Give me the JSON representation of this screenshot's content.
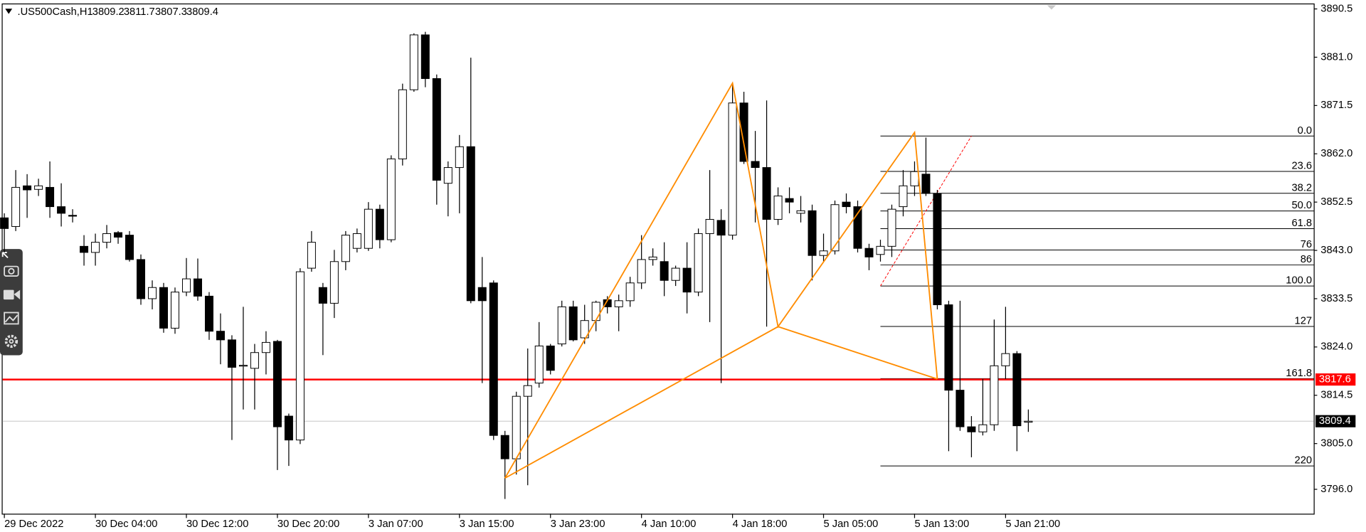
{
  "chart_data": {
    "type": "candlestick",
    "title": ".US500Cash,H1",
    "categories": [
      "29 Dec 2022",
      null,
      null,
      null,
      null,
      null,
      null,
      null,
      "30 Dec 04:00",
      null,
      null,
      null,
      null,
      null,
      null,
      null,
      "30 Dec 12:00",
      null,
      null,
      null,
      null,
      null,
      null,
      null,
      "30 Dec 20:00",
      null,
      null,
      null,
      null,
      null,
      null,
      null,
      "3 Jan 07:00",
      null,
      null,
      null,
      null,
      null,
      null,
      null,
      "3 Jan 15:00",
      null,
      null,
      null,
      null,
      null,
      null,
      null,
      "3 Jan 23:00",
      null,
      null,
      null,
      null,
      null,
      null,
      null,
      "4 Jan 10:00",
      null,
      null,
      null,
      null,
      null,
      null,
      null,
      "4 Jan 18:00",
      null,
      null,
      null,
      null,
      null,
      null,
      null,
      "5 Jan 05:00",
      null,
      null,
      null,
      null,
      null,
      null,
      null,
      "5 Jan 13:00",
      null,
      null,
      null,
      null,
      null,
      null,
      null,
      "5 Jan 21:00",
      null,
      null
    ],
    "open": [
      3849.4,
      3847.7,
      3855.7,
      3855.0,
      3855.4,
      3851.6,
      3849.9,
      3843.8,
      3842.6,
      3844.6,
      3846.5,
      3846.0,
      3841.2,
      3833.5,
      3835.7,
      3827.7,
      3834.8,
      3837.4,
      3834.0,
      3827.1,
      3825.4,
      3820.3,
      3819.8,
      3822.9,
      3825.1,
      3810.4,
      3805.7,
      3839.5,
      3835.7,
      3832.6,
      3840.8,
      3843.4,
      3843.4,
      3851.1,
      3845.1,
      3861.0,
      3874.6,
      3885.4,
      3876.8,
      3856.2,
      3859.3,
      3863.4,
      3835.7,
      3836.6,
      3806.6,
      3802.0,
      3814.3,
      3816.9,
      3824.2,
      3824.6,
      3831.9,
      3825.8,
      3829.2,
      3833.3,
      3831.9,
      3833.1,
      3836.6,
      3841.2,
      3840.8,
      3837.1,
      3839.5,
      3834.8,
      3846.3,
      3848.9,
      3846.0,
      3872.0,
      3860.5,
      3859.3,
      3849.1,
      3853.2,
      3850.3,
      3850.8,
      3842.0,
      3842.9,
      3852.5,
      3851.6,
      3843.4,
      3842.2,
      3843.8,
      3851.6,
      3855.7,
      3858.0,
      3854.2,
      3832.3,
      3815.5,
      3808.3,
      3807.3,
      3808.7,
      3820.3,
      3822.7,
      3809.2
    ],
    "high": [
      3850.3,
      3858.8,
      3858.0,
      3857.1,
      3860.5,
      3856.2,
      3851.1,
      3846.0,
      3846.3,
      3848.0,
      3846.8,
      3846.8,
      3842.2,
      3837.1,
      3836.6,
      3835.7,
      3841.5,
      3841.4,
      3834.8,
      3830.6,
      3826.3,
      3831.9,
      3824.6,
      3827.1,
      3825.4,
      3810.9,
      3839.5,
      3846.8,
      3836.6,
      3843.1,
      3846.8,
      3847.3,
      3852.5,
      3852.0,
      3861.7,
      3875.8,
      3885.7,
      3886.0,
      3877.6,
      3860.5,
      3865.7,
      3880.9,
      3841.7,
      3837.1,
      3807.5,
      3815.2,
      3823.7,
      3828.9,
      3824.6,
      3833.1,
      3833.1,
      3832.3,
      3833.1,
      3834.0,
      3834.3,
      3837.8,
      3846.0,
      3843.4,
      3844.6,
      3840.0,
      3844.6,
      3847.3,
      3858.8,
      3851.1,
      3875.9,
      3874.2,
      3866.5,
      3872.5,
      3855.4,
      3855.4,
      3853.7,
      3852.0,
      3846.3,
      3852.8,
      3854.2,
      3852.8,
      3844.3,
      3845.1,
      3852.0,
      3858.8,
      3860.5,
      3865.2,
      3854.9,
      3833.1,
      3833.1,
      3810.4,
      3817.7,
      3829.4,
      3831.9,
      3823.2,
      3811.7
    ],
    "low": [
      3842.6,
      3846.8,
      3849.4,
      3853.7,
      3849.4,
      3847.7,
      3848.5,
      3840.0,
      3840.0,
      3843.4,
      3844.3,
      3840.8,
      3832.3,
      3831.4,
      3826.8,
      3826.6,
      3834.0,
      3833.1,
      3825.4,
      3820.6,
      3805.7,
      3811.7,
      3811.7,
      3818.6,
      3799.8,
      3800.6,
      3804.9,
      3838.8,
      3822.4,
      3829.7,
      3839.1,
      3842.6,
      3842.9,
      3843.4,
      3844.6,
      3859.7,
      3874.2,
      3875.1,
      3852.0,
      3849.7,
      3850.3,
      3832.6,
      3816.9,
      3805.7,
      3794.1,
      3798.9,
      3796.8,
      3816.0,
      3818.6,
      3824.1,
      3825.1,
      3824.6,
      3827.1,
      3830.6,
      3827.1,
      3831.9,
      3835.4,
      3840.0,
      3834.0,
      3836.0,
      3830.6,
      3834.0,
      3828.9,
      3816.9,
      3845.1,
      3860.0,
      3848.5,
      3828.0,
      3848.0,
      3850.3,
      3848.5,
      3837.1,
      3840.8,
      3842.2,
      3850.3,
      3842.6,
      3839.1,
      3840.8,
      3841.7,
      3849.7,
      3853.7,
      3853.7,
      3831.4,
      3803.5,
      3807.5,
      3802.3,
      3806.6,
      3807.5,
      3817.7,
      3803.5,
      3807.3
    ],
    "close": [
      3847.3,
      3855.4,
      3854.9,
      3855.7,
      3851.6,
      3850.3,
      3849.8,
      3842.6,
      3844.6,
      3846.3,
      3845.6,
      3841.2,
      3833.5,
      3835.7,
      3827.7,
      3834.8,
      3837.4,
      3834.0,
      3827.1,
      3825.4,
      3820.0,
      3820.4,
      3822.9,
      3824.9,
      3808.3,
      3805.7,
      3838.8,
      3844.6,
      3832.6,
      3840.8,
      3846.0,
      3846.3,
      3851.1,
      3845.1,
      3861.0,
      3874.6,
      3885.4,
      3876.8,
      3856.8,
      3859.3,
      3863.4,
      3833.1,
      3833.1,
      3806.6,
      3802.0,
      3814.3,
      3816.4,
      3824.2,
      3819.4,
      3831.9,
      3825.4,
      3829.2,
      3832.8,
      3831.9,
      3833.1,
      3836.6,
      3841.2,
      3841.7,
      3837.1,
      3839.5,
      3834.8,
      3846.3,
      3849.1,
      3846.0,
      3872.0,
      3860.5,
      3859.3,
      3849.1,
      3853.7,
      3852.5,
      3850.8,
      3842.0,
      3842.9,
      3852.0,
      3851.6,
      3843.4,
      3841.7,
      3843.8,
      3851.1,
      3855.7,
      3858.5,
      3854.2,
      3832.3,
      3815.5,
      3808.3,
      3807.3,
      3808.7,
      3820.3,
      3822.7,
      3808.5,
      3809.4
    ],
    "up_color": "#ffffff",
    "down_color": "#000000",
    "wick_color": "#000000",
    "ylim": [
      3791.2,
      3891.4
    ],
    "yticks": [
      3890.5,
      {
        "value": 3881,
        "label": "3881.0"
      },
      3871.5,
      {
        "value": 3862,
        "label": "3862.0"
      },
      3852.5,
      {
        "value": 3843,
        "label": "3843.0"
      },
      3833.5,
      {
        "value": 3824,
        "label": "3824.0"
      },
      3814.5,
      {
        "value": 3805,
        "label": "3805.0"
      },
      {
        "value": 3796,
        "label": "3796.0"
      }
    ],
    "hlines": [
      {
        "value": 3817.6,
        "color": "#ff0000",
        "label_color": "#ff0000"
      },
      {
        "value": 3809.4,
        "color": "#d0d0d0",
        "label_color": "#000000"
      }
    ],
    "pattern": {
      "color": "#ff8c00",
      "x": [
        44,
        64,
        68,
        80,
        82
      ],
      "y": [
        3798.2,
        3875.9,
        3828.0,
        3866.2,
        3817.7
      ]
    },
    "fibonacci": {
      "color": "#000000",
      "trend_color": "#ff0000",
      "anchor_0": {
        "x": 85,
        "price": 3865.5
      },
      "anchor_100": {
        "x": 77,
        "price": 3836.0
      },
      "levels": [
        {
          "value": 0,
          "label": "0.0"
        },
        23.6,
        38.2,
        {
          "value": 50,
          "label": "50.0"
        },
        61.8,
        76,
        86,
        {
          "value": 100,
          "label": "100.0"
        },
        127,
        161.8,
        220
      ]
    }
  }
}
